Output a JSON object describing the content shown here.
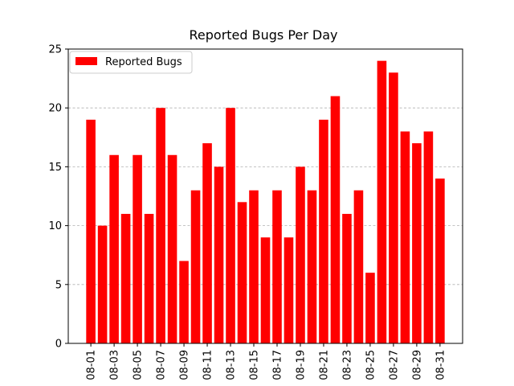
{
  "chart_data": {
    "type": "bar",
    "title": "Reported Bugs Per Day",
    "xlabel": "",
    "ylabel": "",
    "categories": [
      "08-01",
      "08-02",
      "08-03",
      "08-04",
      "08-05",
      "08-06",
      "08-07",
      "08-08",
      "08-09",
      "08-10",
      "08-11",
      "08-12",
      "08-13",
      "08-14",
      "08-15",
      "08-16",
      "08-17",
      "08-18",
      "08-19",
      "08-20",
      "08-21",
      "08-22",
      "08-23",
      "08-24",
      "08-25",
      "08-26",
      "08-27",
      "08-28",
      "08-29",
      "08-30",
      "08-31"
    ],
    "xtick_labels": [
      "08-01",
      "08-03",
      "08-05",
      "08-07",
      "08-09",
      "08-11",
      "08-13",
      "08-15",
      "08-17",
      "08-19",
      "08-21",
      "08-23",
      "08-25",
      "08-27",
      "08-29",
      "08-31"
    ],
    "series": [
      {
        "name": "Reported Bugs",
        "color": "#ff0000",
        "values": [
          19,
          10,
          16,
          11,
          16,
          11,
          20,
          16,
          7,
          13,
          17,
          15,
          20,
          12,
          13,
          9,
          13,
          9,
          15,
          13,
          19,
          21,
          11,
          13,
          6,
          24,
          23,
          18,
          17,
          18,
          14
        ]
      }
    ],
    "ylim": [
      0,
      25
    ],
    "yticks": [
      0,
      5,
      10,
      15,
      20,
      25
    ],
    "grid": "horizontal-dashed",
    "legend_position": "top-left"
  }
}
